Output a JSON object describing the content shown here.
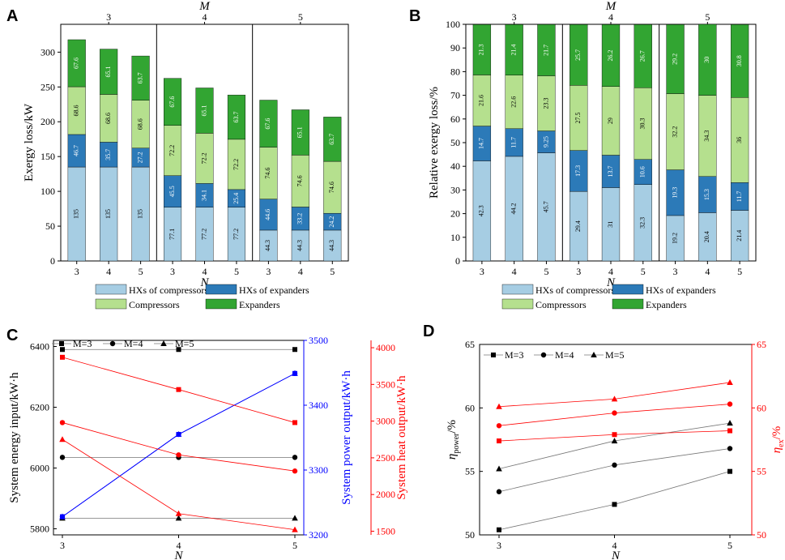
{
  "colors": {
    "hx_comp": "#a6cde3",
    "hx_exp": "#2c7ab8",
    "comp": "#b5e08e",
    "exp": "#32a532",
    "black": "#000000",
    "blue": "#0000ff",
    "red": "#ff0000"
  },
  "chart_data": [
    {
      "panel": "A",
      "type": "bar",
      "stacked": true,
      "top_label": "M",
      "groups": [
        "3",
        "4",
        "5"
      ],
      "categories": [
        "3",
        "4",
        "5",
        "3",
        "4",
        "5",
        "3",
        "4",
        "5"
      ],
      "xlabel": "N",
      "ylabel": "Exergy loss/kW",
      "ylim": [
        0,
        340
      ],
      "yticks": [
        0,
        50,
        100,
        150,
        200,
        250,
        300
      ],
      "series": [
        {
          "name": "HXs of compressors",
          "labels": [
            "135",
            "135",
            "135",
            "77.1",
            "77.2",
            "77.2",
            "44.3",
            "44.3",
            "44.3"
          ],
          "values": [
            135,
            135,
            135,
            77.1,
            77.2,
            77.2,
            44.3,
            44.3,
            44.3
          ]
        },
        {
          "name": "HXs of expanders",
          "labels": [
            "46.7",
            "35.7",
            "27.2",
            "45.5",
            "34.1",
            "25.4",
            "44.6",
            "33.2",
            "24.2"
          ],
          "values": [
            46.7,
            35.7,
            27.2,
            45.5,
            34.1,
            25.4,
            44.6,
            33.2,
            24.2
          ]
        },
        {
          "name": "Compressors",
          "labels": [
            "68.6",
            "68.6",
            "68.6",
            "72.2",
            "72.2",
            "72.2",
            "74.6",
            "74.6",
            "74.6"
          ],
          "values": [
            68.6,
            68.6,
            68.6,
            72.2,
            72.2,
            72.2,
            74.6,
            74.6,
            74.6
          ]
        },
        {
          "name": "Expanders",
          "labels": [
            "67.6",
            "65.1",
            "63.7",
            "67.6",
            "65.1",
            "63.7",
            "67.6",
            "65.1",
            "63.7"
          ],
          "values": [
            67.6,
            65.1,
            63.7,
            67.6,
            65.1,
            63.7,
            67.6,
            65.1,
            63.7
          ]
        }
      ]
    },
    {
      "panel": "B",
      "type": "bar",
      "stacked": true,
      "top_label": "M",
      "groups": [
        "3",
        "4",
        "5"
      ],
      "categories": [
        "3",
        "4",
        "5",
        "3",
        "4",
        "5",
        "3",
        "4",
        "5"
      ],
      "xlabel": "N",
      "ylabel": "Relative exergy loss/%",
      "ylim": [
        0,
        100
      ],
      "yticks": [
        0,
        10,
        20,
        30,
        40,
        50,
        60,
        70,
        80,
        90,
        100
      ],
      "series": [
        {
          "name": "HXs of compressors",
          "labels": [
            "42.3",
            "44.2",
            "45.7",
            "29.4",
            "31",
            "32.3",
            "19.2",
            "20.4",
            "21.4"
          ],
          "values": [
            42.3,
            44.2,
            45.7,
            29.4,
            31,
            32.3,
            19.2,
            20.4,
            21.4
          ]
        },
        {
          "name": "HXs of expanders",
          "labels": [
            "14.7",
            "11.7",
            "9.25",
            "17.3",
            "13.7",
            "10.6",
            "19.3",
            "15.3",
            "11.7"
          ],
          "values": [
            14.7,
            11.7,
            9.25,
            17.3,
            13.7,
            10.6,
            19.3,
            15.3,
            11.7
          ]
        },
        {
          "name": "Compressors",
          "labels": [
            "21.6",
            "22.6",
            "23.3",
            "27.5",
            "29",
            "30.3",
            "32.2",
            "34.3",
            "36"
          ],
          "values": [
            21.6,
            22.6,
            23.3,
            27.5,
            29,
            30.3,
            32.2,
            34.3,
            36
          ]
        },
        {
          "name": "Expanders",
          "labels": [
            "21.3",
            "21.4",
            "21.7",
            "25.7",
            "26.2",
            "26.7",
            "29.2",
            "30",
            "30.8"
          ],
          "values": [
            21.3,
            21.4,
            21.7,
            25.7,
            26.2,
            26.7,
            29.2,
            30,
            30.8
          ]
        }
      ]
    },
    {
      "panel": "C",
      "type": "line",
      "x": [
        3,
        4,
        5
      ],
      "xticks": [
        "3",
        "4",
        "5"
      ],
      "xlabel": "N",
      "y_left": {
        "label": "System energy input/kW·h",
        "ylim": [
          5780,
          6420
        ],
        "ticks": [
          "5800",
          "6000",
          "6200",
          "6400"
        ]
      },
      "y_mid": {
        "label": "System power output/kW·h",
        "ylim": [
          3200,
          3500
        ],
        "ticks": [
          "3200",
          "3300",
          "3400",
          "3500"
        ]
      },
      "y_right": {
        "label": "System heat output/kW·h",
        "ylim": [
          1450,
          4100
        ],
        "ticks": [
          "1500",
          "2000",
          "2500",
          "3000",
          "3500",
          "4000"
        ]
      },
      "legend": [
        "M=3",
        "M=4",
        "M=5"
      ],
      "series": [
        {
          "name": "Energy input M=3",
          "axis": "left",
          "marker": "square",
          "values": [
            6390,
            6390,
            6390
          ]
        },
        {
          "name": "Energy input M=4",
          "axis": "left",
          "marker": "circle",
          "values": [
            6035,
            6035,
            6035
          ]
        },
        {
          "name": "Energy input M=5",
          "axis": "left",
          "marker": "triangle",
          "values": [
            5835,
            5835,
            5835
          ]
        },
        {
          "name": "Power output M=3",
          "axis": "mid",
          "marker": "square",
          "values": [
            3228,
            3355,
            3449
          ]
        },
        {
          "name": "Power output M=4",
          "axis": "mid",
          "marker": "circle",
          "values": [
            3228,
            3355,
            3449
          ]
        },
        {
          "name": "Power output M=5",
          "axis": "mid",
          "marker": "triangle",
          "values": [
            3228,
            3355,
            3449
          ]
        },
        {
          "name": "Heat output M=3",
          "axis": "right",
          "marker": "square",
          "values": [
            3870,
            3430,
            2980
          ]
        },
        {
          "name": "Heat output M=4",
          "axis": "right",
          "marker": "circle",
          "values": [
            2980,
            2540,
            2320
          ]
        },
        {
          "name": "Heat output M=5",
          "axis": "right",
          "marker": "triangle",
          "values": [
            2750,
            1740,
            1520
          ]
        }
      ]
    },
    {
      "panel": "D",
      "type": "line",
      "x": [
        3,
        4,
        5
      ],
      "xticks": [
        "3",
        "4",
        "5"
      ],
      "xlabel": "N",
      "y_left": {
        "label": "η",
        "label_sub": "power",
        "label_tail": "/%",
        "ylim": [
          50,
          65
        ],
        "ticks": [
          "50",
          "55",
          "60",
          "65"
        ]
      },
      "y_right": {
        "label": "η",
        "label_sub": "ex",
        "label_tail": "/%",
        "ylim": [
          50,
          65
        ],
        "ticks": [
          "50",
          "55",
          "60",
          "65"
        ]
      },
      "legend": [
        "M=3",
        "M=4",
        "M=5"
      ],
      "series": [
        {
          "name": "eta_power M=3",
          "axis": "left",
          "marker": "square",
          "values": [
            50.4,
            52.4,
            55.0
          ]
        },
        {
          "name": "eta_power M=4",
          "axis": "left",
          "marker": "circle",
          "values": [
            53.4,
            55.5,
            56.8
          ]
        },
        {
          "name": "eta_power M=5",
          "axis": "left",
          "marker": "triangle",
          "values": [
            55.2,
            57.4,
            58.8
          ]
        },
        {
          "name": "eta_ex M=3",
          "axis": "right",
          "marker": "square",
          "values": [
            57.4,
            57.9,
            58.2
          ]
        },
        {
          "name": "eta_ex M=4",
          "axis": "right",
          "marker": "circle",
          "values": [
            58.6,
            59.6,
            60.3
          ]
        },
        {
          "name": "eta_ex M=5",
          "axis": "right",
          "marker": "triangle",
          "values": [
            60.1,
            60.7,
            62.0
          ]
        }
      ]
    }
  ]
}
